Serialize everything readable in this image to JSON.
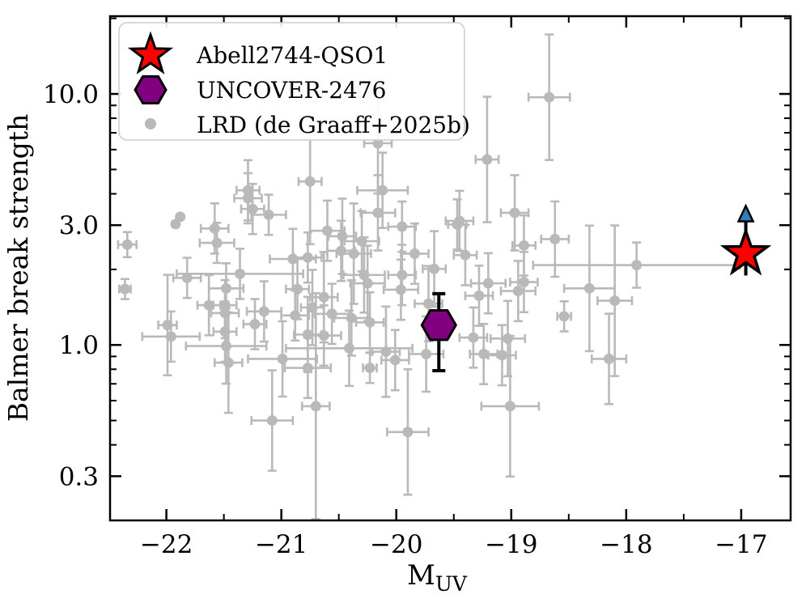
{
  "figure": {
    "ylabel": "Balmer break strength",
    "xlabel_main": "M",
    "xlabel_sub": "UV"
  },
  "legend": {
    "items": [
      {
        "label": "Abell2744-QSO1",
        "marker": "star",
        "color": "#ff0000"
      },
      {
        "label": "UNCOVER-2476",
        "marker": "hexagon",
        "color": "#800080"
      },
      {
        "label": "LRD (de Graaff+2025b)",
        "marker": "dot",
        "color": "#b9b9b9"
      }
    ]
  },
  "colors": {
    "lrd_gray": "#b9b9b9",
    "star_red": "#ff0000",
    "hexagon_purple": "#800080",
    "arrow_blue": "#2e7ebc",
    "marker_edge": "#000000",
    "legend_border": "#cccccc",
    "axis_black": "#000000"
  },
  "chart_data": {
    "type": "scatter",
    "title": "",
    "xlabel": "M_UV",
    "ylabel": "Balmer break strength",
    "grid": false,
    "legend_position": "upper left",
    "x_axis": {
      "min": -22.49,
      "max": -16.57,
      "ticks": [
        -22,
        -21,
        -20,
        -19,
        -18,
        -17
      ],
      "tick_labels": [
        "−22",
        "−21",
        "−20",
        "−19",
        "−18",
        "−17"
      ],
      "minor_step": 0.5
    },
    "y_axis": {
      "scale": "log",
      "min": 0.2,
      "max": 20.4,
      "ticks": [
        0.3,
        1.0,
        3.0,
        10.0
      ],
      "tick_labels": [
        "0.3",
        "1.0",
        "3.0",
        "10.0"
      ]
    },
    "series": [
      {
        "name": "Abell2744-QSO1",
        "marker": "star",
        "points": [
          {
            "muv": -16.96,
            "strength": 2.31,
            "lower_limit": true,
            "arrow_to_strength": 3.5
          }
        ]
      },
      {
        "name": "UNCOVER-2476",
        "marker": "hexagon",
        "points": [
          {
            "muv": -19.63,
            "strength": 1.2,
            "strength_lo": 0.79,
            "strength_hi": 1.6
          }
        ]
      },
      {
        "name": "LRD (de Graaff+2025b)",
        "marker": "dot",
        "columns": [
          "muv",
          "strength",
          "xerr_mag",
          "yerr_dex"
        ],
        "rows": [
          [
            -22.34,
            2.51,
            0.08,
            0.05
          ],
          [
            -21.92,
            3.03,
            0,
            0
          ],
          [
            -21.88,
            3.24,
            0,
            0
          ],
          [
            -22.36,
            1.67,
            0.05,
            0.04
          ],
          [
            -21.82,
            1.85,
            0.12,
            0.08
          ],
          [
            -21.36,
            1.92,
            0.55,
            0.1
          ],
          [
            -21.58,
            2.91,
            0.12,
            0.1
          ],
          [
            -21.56,
            2.55,
            0.15,
            0.08
          ],
          [
            -21.29,
            4.13,
            0.1,
            0.12
          ],
          [
            -21.29,
            3.84,
            0.12,
            0.1
          ],
          [
            -21.25,
            3.48,
            0.1,
            0.1
          ],
          [
            -21.11,
            3.3,
            0.15,
            0.08
          ],
          [
            -21.99,
            1.2,
            0.08,
            0.2
          ],
          [
            -21.96,
            1.08,
            0.25,
            0.1
          ],
          [
            -21.48,
            1.68,
            0.15,
            0.1
          ],
          [
            -21.63,
            1.44,
            0.1,
            0.12
          ],
          [
            -21.49,
            1.44,
            0.1,
            0.1
          ],
          [
            -21.49,
            1.34,
            0.12,
            0.1
          ],
          [
            -21.15,
            1.36,
            0.15,
            0.12
          ],
          [
            -21.23,
            1.21,
            0.1,
            0.1
          ],
          [
            -21.49,
            1.13,
            0.1,
            0.12
          ],
          [
            -21.48,
            0.99,
            0.35,
            0.15
          ],
          [
            -21.46,
            0.85,
            0.12,
            0.2
          ],
          [
            -20.16,
            3.36,
            0.15,
            0.15
          ],
          [
            -19.95,
            2.96,
            0.12,
            0.1
          ],
          [
            -20.6,
            2.85,
            0.15,
            0.12
          ],
          [
            -20.47,
            2.71,
            0.12,
            0.15
          ],
          [
            -20.3,
            2.59,
            0.15,
            0.12
          ],
          [
            -20.9,
            2.2,
            0.2,
            0.12
          ],
          [
            -20.77,
            2.23,
            0.12,
            0.1
          ],
          [
            -20.37,
            2.31,
            0.15,
            0.2
          ],
          [
            -19.84,
            2.31,
            0.12,
            0.12
          ],
          [
            -19.67,
            2.01,
            0.1,
            0.15
          ],
          [
            -20.48,
            2.37,
            0.12,
            0.12
          ],
          [
            -20.28,
            1.9,
            0.18,
            0.15
          ],
          [
            -20.63,
            1.55,
            0.12,
            0.18
          ],
          [
            -20.86,
            1.67,
            0.1,
            0.12
          ],
          [
            -20.25,
            1.76,
            0.15,
            0.15
          ],
          [
            -19.95,
            1.9,
            0.12,
            0.12
          ],
          [
            -19.96,
            1.66,
            0.15,
            0.12
          ],
          [
            -19.72,
            1.46,
            0.12,
            0.15
          ],
          [
            -20.56,
            1.33,
            0.15,
            0.12
          ],
          [
            -20.73,
            1.41,
            0.1,
            0.15
          ],
          [
            -20.88,
            1.31,
            0.12,
            0.1
          ],
          [
            -20.39,
            1.28,
            0.15,
            0.15
          ],
          [
            -20.23,
            1.23,
            0.12,
            0.12
          ],
          [
            -20.77,
            1.1,
            0.12,
            0.15
          ],
          [
            -20.63,
            1.09,
            0.15,
            0.12
          ],
          [
            -20.41,
            0.97,
            0.55,
            0.15
          ],
          [
            -20.09,
            0.94,
            0.12,
            0.18
          ],
          [
            -19.74,
            0.92,
            0.15,
            0.15
          ],
          [
            -19.45,
            3.12,
            0.12,
            0.12
          ],
          [
            -20.16,
            6.36,
            0.12,
            0.2
          ],
          [
            -20.12,
            4.13,
            0.22,
            0.15
          ],
          [
            -20.75,
            4.48,
            0.1,
            0.25
          ],
          [
            -18.67,
            9.7,
            0.18,
            0.25
          ],
          [
            -19.21,
            5.48,
            0.1,
            0.25
          ],
          [
            -18.97,
            3.36,
            0.12,
            0.15
          ],
          [
            -18.89,
            2.49,
            0.1,
            0.12
          ],
          [
            -18.62,
            2.64,
            0.12,
            0.15
          ],
          [
            -19.47,
            3.02,
            0.08,
            0.1
          ],
          [
            -19.4,
            2.28,
            0.1,
            0.12
          ],
          [
            -17.91,
            2.08,
            0.9,
            0.09
          ],
          [
            -19.2,
            1.76,
            0.15,
            0.12
          ],
          [
            -18.89,
            1.78,
            0.12,
            0.12
          ],
          [
            -19.28,
            1.57,
            0.12,
            0.12
          ],
          [
            -18.94,
            1.64,
            0.15,
            0.12
          ],
          [
            -18.32,
            1.68,
            0.22,
            0.25
          ],
          [
            -18.1,
            1.5,
            0.15,
            0.3
          ],
          [
            -18.54,
            1.3,
            0.06,
            0.06
          ],
          [
            -19.33,
            1.07,
            0.12,
            0.12
          ],
          [
            -19.03,
            1.06,
            0.15,
            0.15
          ],
          [
            -19.24,
            0.92,
            0.12,
            0.12
          ],
          [
            -19.08,
            0.91,
            0.12,
            0.12
          ],
          [
            -18.15,
            0.88,
            0.15,
            0.18
          ],
          [
            -19.01,
            0.57,
            0.25,
            0.28
          ],
          [
            -20.99,
            0.88,
            0.3,
            0.15
          ],
          [
            -20.77,
            0.81,
            0.2,
            0.12
          ],
          [
            -20.23,
            0.81,
            0.06,
            0.06
          ],
          [
            -20.7,
            0.57,
            0.12,
            0.45
          ],
          [
            -21.08,
            0.5,
            0.18,
            0.2
          ],
          [
            -19.9,
            0.45,
            0.18,
            0.25
          ],
          [
            -20.01,
            0.87,
            0.12,
            0.12
          ]
        ]
      }
    ]
  }
}
